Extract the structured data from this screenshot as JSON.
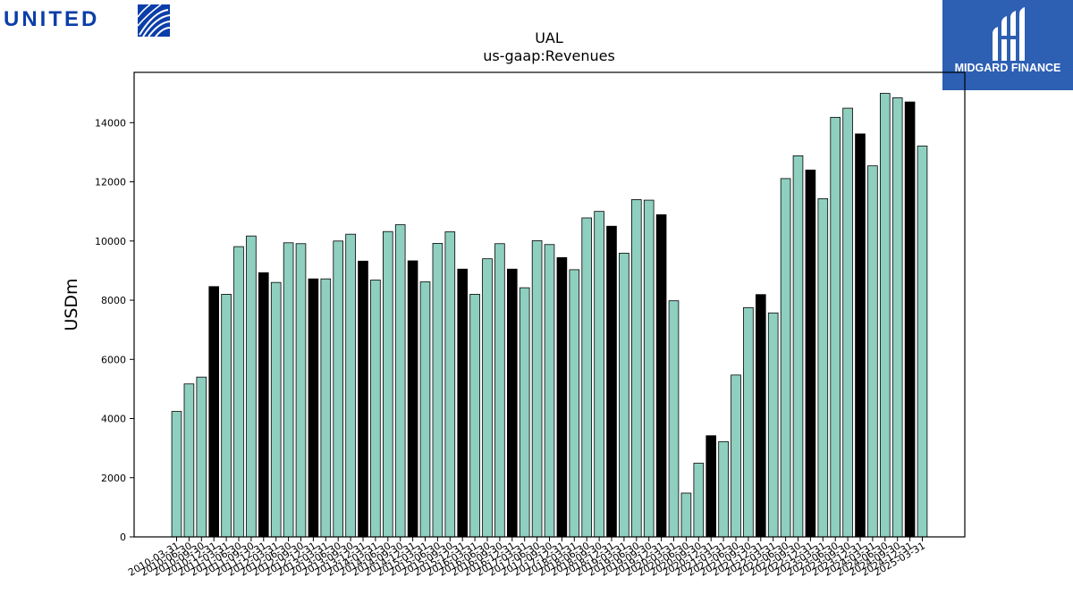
{
  "logos": {
    "left_text": "UNITED",
    "left_icon": "globe-icon",
    "right_text": "MIDGARD FINANCE",
    "right_icon": "midgard-mark-icon"
  },
  "colors": {
    "bar_default": "#8ecfc0",
    "bar_highlight": "#000000",
    "bar_edge": "#000000",
    "brand_left": "#0b3ea8",
    "brand_right": "#2d5fb3"
  },
  "chart_data": {
    "type": "bar",
    "title": "UAL",
    "subtitle": "us-gaap:Revenues",
    "xlabel": "",
    "ylabel": "USDm",
    "ylim": [
      0,
      15700
    ],
    "yticks": [
      0,
      2000,
      4000,
      6000,
      8000,
      10000,
      12000,
      14000
    ],
    "grid": false,
    "categories": [
      "2010-03-31",
      "2010-06-30",
      "2010-09-30",
      "2010-12-31",
      "2011-03-31",
      "2011-06-30",
      "2011-09-30",
      "2011-12-31",
      "2012-03-31",
      "2012-06-30",
      "2012-09-30",
      "2012-12-31",
      "2013-03-31",
      "2013-06-30",
      "2013-09-30",
      "2013-12-31",
      "2014-03-31",
      "2014-06-30",
      "2014-09-30",
      "2014-12-31",
      "2015-03-31",
      "2015-06-30",
      "2015-09-30",
      "2015-12-31",
      "2016-03-31",
      "2016-06-30",
      "2016-09-30",
      "2016-12-31",
      "2017-03-31",
      "2017-06-30",
      "2017-09-30",
      "2017-12-31",
      "2018-03-31",
      "2018-06-30",
      "2018-09-30",
      "2018-12-31",
      "2019-03-31",
      "2019-06-30",
      "2019-09-30",
      "2019-12-31",
      "2020-03-31",
      "2020-06-30",
      "2020-09-30",
      "2020-12-31",
      "2021-03-31",
      "2021-06-30",
      "2021-09-30",
      "2021-12-31",
      "2022-03-31",
      "2022-06-30",
      "2022-09-30",
      "2022-12-31",
      "2023-03-31",
      "2023-06-30",
      "2023-09-30",
      "2023-12-31",
      "2024-03-31",
      "2024-06-30",
      "2024-09-30",
      "2024-12-31",
      "2025-03-31"
    ],
    "values": [
      4240,
      5170,
      5400,
      8460,
      8200,
      9810,
      10170,
      8930,
      8600,
      9940,
      9910,
      8720,
      8720,
      10000,
      10230,
      9320,
      8680,
      10320,
      10550,
      9330,
      8620,
      9920,
      10310,
      9050,
      8200,
      9400,
      9910,
      9050,
      8420,
      10010,
      9880,
      9440,
      9030,
      10780,
      11000,
      10500,
      9590,
      11400,
      11380,
      10890,
      7980,
      1480,
      2490,
      3420,
      3220,
      5470,
      7750,
      8190,
      7570,
      12110,
      12880,
      12400,
      11430,
      14180,
      14490,
      13620,
      12540,
      14990,
      14840,
      14700,
      13210
    ],
    "highlight_index_note": "black bars",
    "highlight": [
      3,
      7,
      11,
      15,
      19,
      23,
      27,
      31,
      35,
      39,
      43,
      47,
      51,
      55,
      59
    ]
  }
}
